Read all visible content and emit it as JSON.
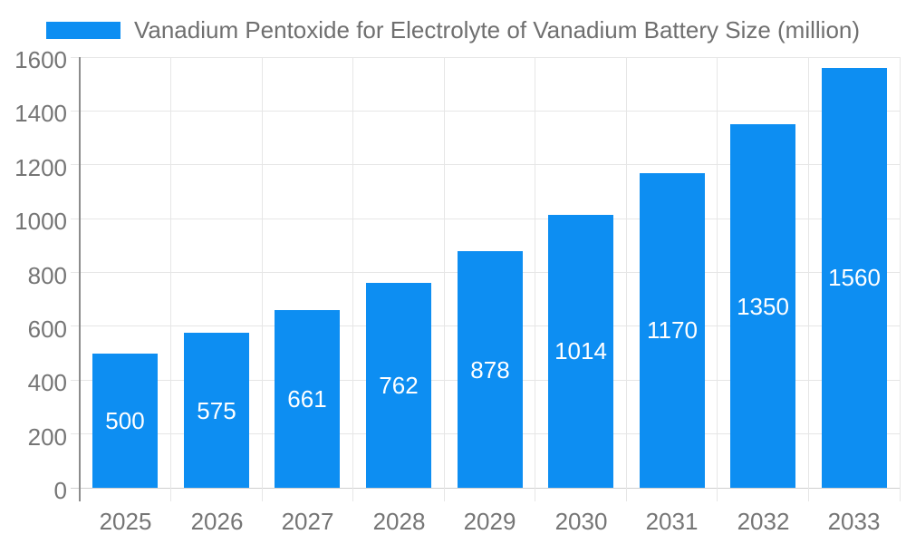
{
  "chart_data": {
    "type": "bar",
    "title": "Vanadium Pentoxide for Electrolyte of Vanadium Battery Size (million)",
    "categories": [
      "2025",
      "2026",
      "2027",
      "2028",
      "2029",
      "2030",
      "2031",
      "2032",
      "2033"
    ],
    "values": [
      500,
      575,
      661,
      762,
      878,
      1014,
      1170,
      1350,
      1560
    ],
    "xlabel": "",
    "ylabel": "",
    "ylim": [
      0,
      1600
    ],
    "ytick_step": 200,
    "ytick_labels": [
      "0",
      "200",
      "400",
      "600",
      "800",
      "1000",
      "1200",
      "1400",
      "1600"
    ],
    "grid": true,
    "legend_position": "top",
    "bar_labels_inside": true,
    "colors": {
      "bar": "#0d8ef2",
      "bar_label": "#ffffff",
      "gridline": "#e6e6e6",
      "baseline": "#cfcfcf",
      "axis_line": "#8c8c8c",
      "tick_label": "#757575",
      "title": "#6f6f6f",
      "background": "#ffffff"
    }
  }
}
